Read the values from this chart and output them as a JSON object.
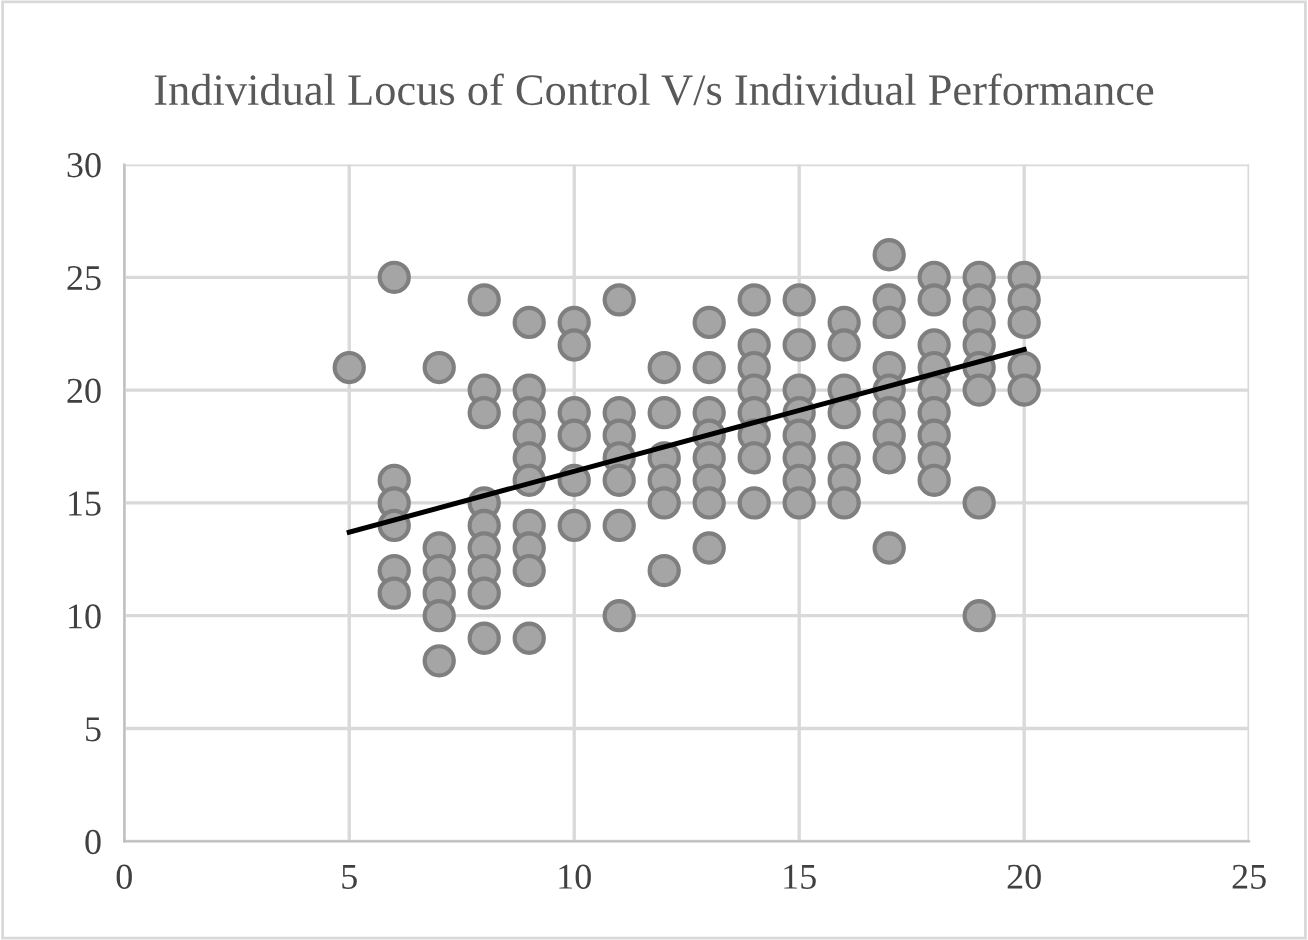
{
  "chart_data": {
    "type": "scatter",
    "title": "Individual Locus of Control V/s Individual Performance",
    "series": [
      {
        "color": "#a5a5a5",
        "marker": "circle",
        "x": [
          5,
          6,
          6,
          6,
          6,
          6,
          6,
          7,
          7,
          7,
          7,
          7,
          7,
          8,
          8,
          8,
          8,
          8,
          8,
          8,
          8,
          8,
          9,
          9,
          9,
          9,
          9,
          9,
          9,
          9,
          9,
          9,
          10,
          10,
          10,
          10,
          10,
          10,
          11,
          11,
          11,
          11,
          11,
          11,
          11,
          12,
          12,
          12,
          12,
          12,
          12,
          13,
          13,
          13,
          13,
          13,
          13,
          13,
          13,
          14,
          14,
          14,
          14,
          14,
          14,
          14,
          14,
          15,
          15,
          15,
          15,
          15,
          15,
          15,
          15,
          16,
          16,
          16,
          16,
          16,
          16,
          16,
          17,
          17,
          17,
          17,
          17,
          17,
          17,
          17,
          17,
          18,
          18,
          18,
          18,
          18,
          18,
          18,
          18,
          18,
          19,
          19,
          19,
          19,
          19,
          19,
          19,
          19,
          20,
          20,
          20,
          20,
          20
        ],
        "values": [
          21,
          25,
          16,
          15,
          14,
          12,
          11,
          21,
          13,
          12,
          11,
          10,
          8,
          24,
          20,
          19,
          15,
          14,
          13,
          12,
          11,
          9,
          23,
          20,
          19,
          18,
          17,
          16,
          14,
          13,
          12,
          9,
          23,
          22,
          19,
          18,
          16,
          14,
          24,
          19,
          18,
          17,
          16,
          14,
          10,
          21,
          19,
          17,
          16,
          15,
          12,
          23,
          21,
          19,
          18,
          17,
          16,
          15,
          13,
          24,
          22,
          21,
          20,
          19,
          18,
          17,
          15,
          24,
          22,
          20,
          19,
          18,
          17,
          16,
          15,
          23,
          22,
          20,
          19,
          17,
          16,
          15,
          26,
          24,
          23,
          21,
          20,
          19,
          18,
          17,
          13,
          25,
          24,
          22,
          21,
          20,
          19,
          18,
          17,
          16,
          25,
          24,
          23,
          22,
          21,
          20,
          15,
          10,
          25,
          24,
          23,
          21,
          20
        ]
      },
      {
        "type": "line",
        "color": "#000000",
        "marker": "none",
        "x": [
          5,
          20
        ],
        "values": [
          13.7,
          21.8
        ]
      }
    ],
    "xlim": [
      0,
      25
    ],
    "xticks": [
      0,
      5,
      10,
      15,
      20,
      25
    ],
    "ylim": [
      0,
      30
    ],
    "yticks": [
      0,
      5,
      10,
      15,
      20,
      25,
      30
    ],
    "grid": true,
    "legend": false
  }
}
